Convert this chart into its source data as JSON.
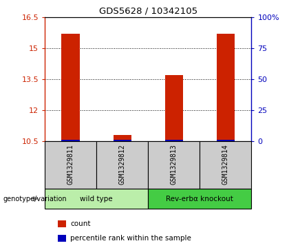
{
  "title": "GDS5628 / 10342105",
  "samples": [
    "GSM1329811",
    "GSM1329812",
    "GSM1329813",
    "GSM1329814"
  ],
  "red_values": [
    15.72,
    10.82,
    13.72,
    15.72
  ],
  "blue_pct": [
    1.0,
    1.0,
    1.0,
    1.0
  ],
  "ylim_left": [
    10.5,
    16.5
  ],
  "ylim_right": [
    0,
    100
  ],
  "yticks_left": [
    10.5,
    12.0,
    13.5,
    15.0,
    16.5
  ],
  "ytick_labels_left": [
    "10.5",
    "12",
    "13.5",
    "15",
    "16.5"
  ],
  "yticks_right": [
    0,
    25,
    50,
    75,
    100
  ],
  "ytick_labels_right": [
    "0",
    "25",
    "50",
    "75",
    "100%"
  ],
  "left_color": "#cc2200",
  "right_color": "#0000bb",
  "bar_width": 0.35,
  "groups": [
    {
      "label": "wild type",
      "samples": [
        0,
        1
      ],
      "color": "#bbeeaa"
    },
    {
      "label": "Rev-erbα knockout",
      "samples": [
        2,
        3
      ],
      "color": "#44cc44"
    }
  ],
  "legend_items": [
    {
      "color": "#cc2200",
      "label": "count"
    },
    {
      "color": "#0000bb",
      "label": "percentile rank within the sample"
    }
  ],
  "genotype_label": "genotype/variation",
  "background_color": "#ffffff",
  "plot_bg": "#ffffff",
  "label_area_bg": "#cccccc"
}
